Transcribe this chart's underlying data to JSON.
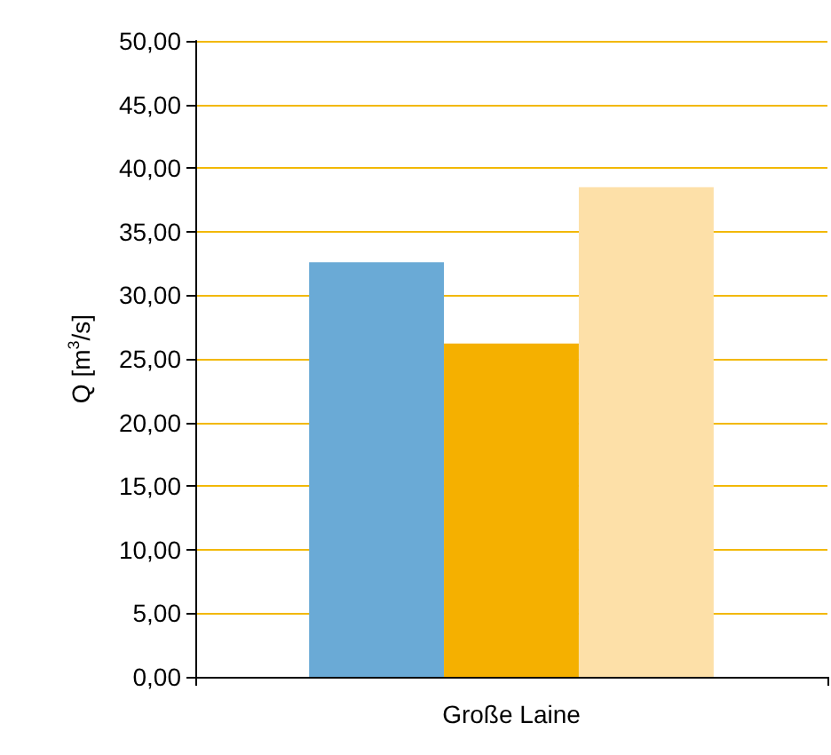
{
  "chart_data": {
    "type": "bar",
    "ylabel": "Q [m$^{3}$/s]",
    "categories": [
      "Große Laine"
    ],
    "series": [
      {
        "color": "#6aaad6",
        "values": [
          32.6
        ]
      },
      {
        "color": "#f5b000",
        "values": [
          26.2
        ]
      },
      {
        "color": "#fde0a8",
        "values": [
          38.5
        ]
      }
    ],
    "ylim": [
      0,
      50
    ],
    "yticks": [
      {
        "value": 0,
        "label": "0,00"
      },
      {
        "value": 5,
        "label": "5,00"
      },
      {
        "value": 10,
        "label": "10,00"
      },
      {
        "value": 15,
        "label": "15,00"
      },
      {
        "value": 20,
        "label": "20,00"
      },
      {
        "value": 25,
        "label": "25,00"
      },
      {
        "value": 30,
        "label": "30,00"
      },
      {
        "value": 35,
        "label": "35,00"
      },
      {
        "value": 40,
        "label": "40,00"
      },
      {
        "value": 45,
        "label": "45,00"
      },
      {
        "value": 50,
        "label": "50,00"
      }
    ],
    "grid": "y"
  }
}
